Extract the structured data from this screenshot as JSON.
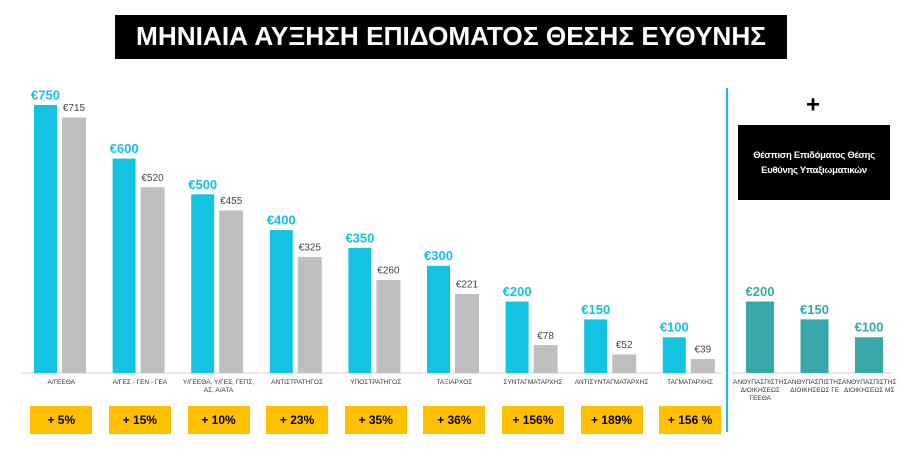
{
  "title": "ΜΗΝΙΑΙΑ ΑΥΞΗΣΗ ΕΠΙΔΟΜΑΤΟΣ ΘΕΣΗΣ ΕΥΘΥΝΗΣ",
  "chart_data": [
    {
      "type": "bar",
      "categories": [
        "Α/ΓΕΕΘΑ",
        "Α/ΓΕΣ - ΓΕΝ - ΓΕΑ",
        "Υ/ΓΕΕΘΑ, Υ/ΓΕΣ, ΓΕΠΣ, ΑΣ, Α/ΑΤΑ",
        "ΑΝΤΙΣΤΡΑΤΗΓΟΣ",
        "ΥΠΟΣΤΡΑΤΗΓΟΣ",
        "ΤΑΞΙΑΡΧΟΣ",
        "ΣΥΝΤΑΓΜΑΤΑΡΧΗΣ",
        "ΑΝΤΙΣΥΝΤΑΓΜΑΤΑΡΧΗΣ",
        "ΤΑΓΜΑΤΑΡΧΗΣ"
      ],
      "series": [
        {
          "color": "#14c3e2",
          "values": [
            750,
            600,
            500,
            400,
            350,
            300,
            200,
            150,
            100
          ],
          "value_labels": [
            "€750",
            "€600",
            "€500",
            "€400",
            "€350",
            "€300",
            "€200",
            "€150",
            "€100"
          ]
        },
        {
          "color": "#bfbfbf",
          "values": [
            715,
            520,
            455,
            325,
            260,
            221,
            78,
            52,
            39
          ],
          "value_labels": [
            "€715",
            "€520",
            "€455",
            "€325",
            "€260",
            "€221",
            "€78",
            "€52",
            "€39"
          ]
        }
      ],
      "increase_labels": [
        "+ 5%",
        "+ 15%",
        "+ 10%",
        "+ 23%",
        "+ 35%",
        "+ 36%",
        "+ 156%",
        "+ 189%",
        "+ 156 %"
      ]
    },
    {
      "type": "bar",
      "plus": "+",
      "note": "Θέσπιση Επιδόματος Θέσης Ευθύνης Υπαξιωματικών",
      "categories": [
        "ΑΝΘΥΠΑΣΠΙΣΤΗΣ ΔΙΟΙΚΗΣΕΩΣ ΓΕΕΘΑ",
        "ΑΝΘΥΠΑΣΠΙΣΤΗΣ ΔΙΟΙΚΗΣΕΩΣ ΓΕ",
        "ΑΝΘΥΠΑΣΠΙΣΤΗΣ ΔΙΟΙΚΗΣΕΩΣ ΜΣ"
      ],
      "series": [
        {
          "color": "#38a7a9",
          "values": [
            200,
            150,
            100
          ],
          "value_labels": [
            "€200",
            "€150",
            "€100"
          ]
        }
      ]
    }
  ]
}
